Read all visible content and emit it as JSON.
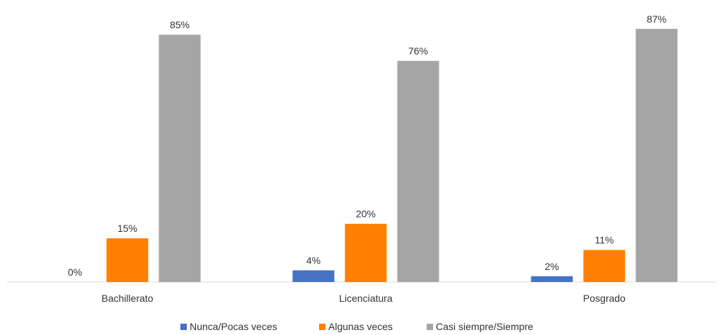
{
  "chart_data": {
    "type": "bar",
    "categories": [
      "Bachillerato",
      "Licenciatura",
      "Posgrado"
    ],
    "series": [
      {
        "name": "Nunca/Pocas veces",
        "color": "#4472C4",
        "values": [
          0,
          4,
          2
        ],
        "labels": [
          "0%",
          "4%",
          "2%"
        ]
      },
      {
        "name": "Algunas veces",
        "color": "#FF7F00",
        "values": [
          15,
          20,
          11
        ],
        "labels": [
          "15%",
          "20%",
          "11%"
        ]
      },
      {
        "name": "Casi siempre/Siempre",
        "color": "#A5A5A5",
        "values": [
          85,
          76,
          87
        ],
        "labels": [
          "85%",
          "76%",
          "87%"
        ]
      }
    ],
    "ylim": [
      0,
      100
    ],
    "grid": false,
    "legend_position": "bottom"
  }
}
